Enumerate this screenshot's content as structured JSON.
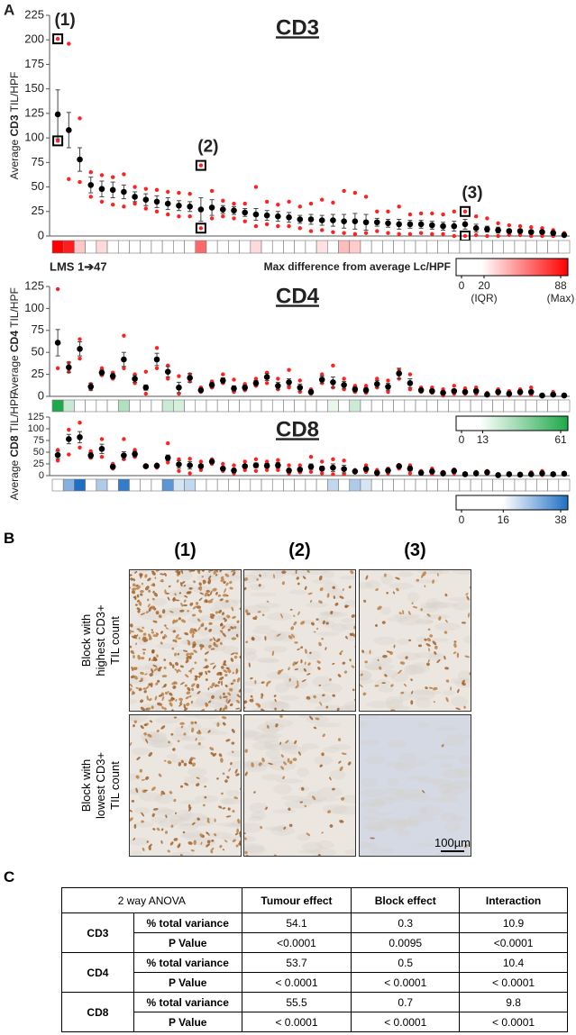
{
  "panel_labels": [
    "A",
    "B",
    "C"
  ],
  "chart_data": [
    {
      "type": "errorbar",
      "title": "CD3",
      "ylabel": "Average CD3 TIL/HPF",
      "ylim": [
        0,
        225
      ],
      "yticks": [
        0,
        25,
        50,
        75,
        100,
        125,
        150,
        175,
        200,
        225
      ],
      "mean_color": "#000000",
      "block_color": "#ff2020",
      "values": [
        124,
        108,
        78,
        52,
        48,
        47,
        45,
        40,
        37,
        35,
        33,
        31,
        30,
        27,
        29,
        27,
        26,
        24,
        22,
        21,
        20,
        19,
        17,
        17,
        16,
        16,
        15,
        15,
        14,
        14,
        13,
        12,
        12,
        12,
        11,
        10,
        10,
        12,
        8,
        7,
        6,
        5,
        5,
        4,
        4,
        3,
        1
      ],
      "errors": [
        25,
        18,
        12,
        8,
        8,
        8,
        7,
        5,
        6,
        6,
        6,
        5,
        5,
        12,
        8,
        4,
        4,
        4,
        6,
        5,
        5,
        5,
        4,
        5,
        5,
        6,
        7,
        8,
        8,
        4,
        4,
        5,
        4,
        4,
        4,
        4,
        5,
        5,
        4,
        3,
        3,
        2,
        2,
        2,
        2,
        2,
        1
      ],
      "blocks_max": [
        201,
        196,
        120,
        65,
        62,
        60,
        63,
        50,
        48,
        47,
        45,
        44,
        43,
        72,
        46,
        36,
        33,
        33,
        50,
        35,
        32,
        35,
        30,
        33,
        37,
        34,
        46,
        44,
        40,
        25,
        25,
        30,
        22,
        23,
        23,
        22,
        25,
        25,
        20,
        18,
        13,
        11,
        10,
        9,
        8,
        6,
        3
      ],
      "blocks_min": [
        97,
        58,
        55,
        40,
        35,
        32,
        30,
        33,
        28,
        25,
        22,
        20,
        20,
        8,
        18,
        20,
        18,
        15,
        10,
        12,
        10,
        10,
        8,
        5,
        6,
        4,
        3,
        2,
        3,
        5,
        3,
        2,
        2,
        3,
        2,
        2,
        0,
        0,
        1,
        0,
        0,
        1,
        1,
        0,
        0,
        0,
        0
      ],
      "markers": [
        "(1)",
        null,
        null,
        null,
        null,
        null,
        null,
        null,
        null,
        null,
        null,
        null,
        null,
        "(2)",
        null,
        null,
        null,
        null,
        null,
        null,
        null,
        null,
        null,
        null,
        null,
        null,
        null,
        null,
        null,
        null,
        null,
        null,
        null,
        null,
        null,
        null,
        null,
        "(3)",
        null,
        null,
        null,
        null,
        null,
        null,
        null,
        null,
        null
      ],
      "heatmap": {
        "values": [
          88,
          80,
          35,
          0,
          30,
          0,
          0,
          0,
          0,
          0,
          0,
          0,
          0,
          60,
          0,
          0,
          0,
          0,
          30,
          0,
          0,
          0,
          0,
          0,
          28,
          0,
          38,
          34,
          0,
          0,
          0,
          0,
          0,
          0,
          0,
          0,
          0,
          0,
          0,
          0,
          0,
          0,
          0,
          0,
          0,
          0,
          0
        ],
        "color": "#ff0000"
      },
      "note": "LMS 1➔47",
      "colorbar_title": "Max difference from average Lc/HPF",
      "colorbar": {
        "ticks": [
          0,
          20,
          88
        ],
        "sublabels": [
          null,
          "(IQR)",
          "(Max)"
        ]
      }
    },
    {
      "type": "errorbar",
      "title": "CD4",
      "ylabel": "Average CD4 TIL/HPF",
      "ylim": [
        0,
        125
      ],
      "yticks": [
        0,
        25,
        50,
        75,
        100,
        125
      ],
      "mean_color": "#000000",
      "block_color": "#ff2020",
      "values": [
        61,
        33,
        54,
        11,
        27,
        23,
        42,
        20,
        10,
        42,
        28,
        10,
        21,
        7,
        13,
        18,
        9,
        10,
        15,
        22,
        12,
        16,
        10,
        5,
        19,
        16,
        13,
        8,
        7,
        14,
        11,
        26,
        15,
        7,
        6,
        4,
        6,
        5,
        6,
        2,
        5,
        3,
        5,
        5,
        1,
        2,
        1
      ],
      "errors": [
        15,
        6,
        8,
        4,
        3,
        3,
        8,
        4,
        3,
        7,
        6,
        6,
        5,
        2,
        3,
        3,
        3,
        3,
        3,
        4,
        4,
        4,
        4,
        2,
        4,
        6,
        4,
        3,
        3,
        4,
        4,
        6,
        5,
        2,
        2,
        2,
        2,
        2,
        2,
        1,
        2,
        1,
        2,
        2,
        1,
        1,
        1
      ],
      "blocks_max": [
        122,
        38,
        65,
        14,
        32,
        27,
        69,
        25,
        28,
        55,
        35,
        23,
        25,
        10,
        17,
        25,
        19,
        14,
        20,
        27,
        20,
        30,
        18,
        8,
        25,
        35,
        20,
        12,
        12,
        20,
        18,
        30,
        25,
        10,
        10,
        8,
        12,
        9,
        10,
        4,
        8,
        6,
        8,
        10,
        2,
        5,
        2
      ],
      "blocks_min": [
        32,
        28,
        43,
        8,
        24,
        20,
        32,
        15,
        3,
        32,
        20,
        3,
        17,
        5,
        10,
        15,
        5,
        7,
        12,
        15,
        8,
        10,
        5,
        3,
        15,
        10,
        8,
        5,
        4,
        10,
        5,
        20,
        8,
        5,
        4,
        1,
        3,
        3,
        3,
        1,
        3,
        1,
        3,
        2,
        0,
        1,
        0
      ],
      "heatmap": {
        "values": [
          61,
          25,
          0,
          0,
          0,
          0,
          30,
          0,
          0,
          0,
          24,
          22,
          0,
          0,
          0,
          0,
          0,
          0,
          0,
          0,
          0,
          0,
          0,
          0,
          0,
          18,
          0,
          24,
          0,
          0,
          0,
          0,
          0,
          0,
          0,
          0,
          0,
          0,
          0,
          0,
          0,
          0,
          0,
          0,
          0,
          0,
          0
        ],
        "color": "#1fa84a"
      },
      "colorbar": {
        "ticks": [
          0,
          13,
          61
        ]
      }
    },
    {
      "type": "errorbar",
      "title": "CD8",
      "ylabel": "Average CD8 TIL/HPF",
      "ylim": [
        0,
        125
      ],
      "yticks": [
        0,
        25,
        50,
        75,
        100,
        125
      ],
      "mean_color": "#000000",
      "block_color": "#ff2020",
      "values": [
        44,
        78,
        82,
        43,
        57,
        19,
        43,
        46,
        20,
        21,
        38,
        24,
        22,
        20,
        30,
        15,
        11,
        20,
        22,
        21,
        22,
        11,
        13,
        19,
        15,
        17,
        14,
        9,
        14,
        6,
        11,
        20,
        15,
        6,
        9,
        5,
        10,
        3,
        5,
        7,
        1,
        3,
        2,
        3,
        5,
        3,
        4
      ],
      "errors": [
        8,
        10,
        12,
        6,
        10,
        4,
        8,
        6,
        2,
        2,
        6,
        8,
        8,
        4,
        4,
        4,
        4,
        4,
        5,
        5,
        6,
        4,
        4,
        6,
        5,
        8,
        8,
        2,
        4,
        3,
        4,
        4,
        5,
        2,
        3,
        2,
        3,
        1,
        2,
        2,
        1,
        1,
        1,
        2,
        2,
        1,
        1
      ],
      "blocks_max": [
        55,
        98,
        113,
        52,
        78,
        25,
        78,
        55,
        22,
        24,
        69,
        35,
        36,
        30,
        35,
        25,
        22,
        30,
        35,
        30,
        33,
        22,
        22,
        40,
        30,
        35,
        32,
        12,
        22,
        12,
        15,
        23,
        22,
        10,
        15,
        8,
        13,
        5,
        8,
        10,
        3,
        5,
        4,
        7,
        10,
        5,
        6
      ],
      "blocks_min": [
        32,
        45,
        60,
        38,
        40,
        15,
        35,
        40,
        18,
        17,
        28,
        10,
        5,
        12,
        25,
        10,
        5,
        12,
        10,
        12,
        12,
        5,
        7,
        8,
        5,
        3,
        3,
        6,
        8,
        2,
        5,
        15,
        5,
        3,
        3,
        2,
        5,
        1,
        2,
        4,
        0,
        1,
        1,
        1,
        1,
        1,
        2
      ],
      "heatmap": {
        "values": [
          0,
          28,
          38,
          0,
          24,
          0,
          36,
          0,
          0,
          0,
          32,
          20,
          22,
          0,
          0,
          0,
          0,
          0,
          0,
          0,
          0,
          0,
          0,
          0,
          0,
          22,
          0,
          24,
          20,
          0,
          0,
          0,
          0,
          0,
          0,
          0,
          0,
          0,
          0,
          0,
          0,
          0,
          0,
          0,
          0,
          0,
          0
        ],
        "color": "#1f6fc4"
      },
      "colorbar": {
        "ticks": [
          0,
          16,
          38
        ]
      }
    }
  ],
  "panel_b": {
    "columns": [
      "(1)",
      "(2)",
      "(3)"
    ],
    "rows": [
      "Block with highest CD3+ TIL count",
      "Block with lowest CD3+ TIL count"
    ],
    "scale_bar": "100µm"
  },
  "table": {
    "header": [
      "2 way ANOVA",
      "Tumour effect",
      "Block effect",
      "Interaction"
    ],
    "groups": [
      {
        "name": "CD3",
        "rows": [
          [
            "% total variance",
            "54.1",
            "0.3",
            "10.9"
          ],
          [
            "P Value",
            "<0.0001",
            "0.0095",
            "<0.0001"
          ]
        ]
      },
      {
        "name": "CD4",
        "rows": [
          [
            "% total variance",
            "53.7",
            "0.5",
            "10.4"
          ],
          [
            "P Value",
            "< 0.0001",
            "< 0.0001",
            "< 0.0001"
          ]
        ]
      },
      {
        "name": "CD8",
        "rows": [
          [
            "% total variance",
            "55.5",
            "0.7",
            "9.8"
          ],
          [
            "P Value",
            "< 0.0001",
            "< 0.0001",
            "< 0.0001"
          ]
        ]
      }
    ]
  }
}
